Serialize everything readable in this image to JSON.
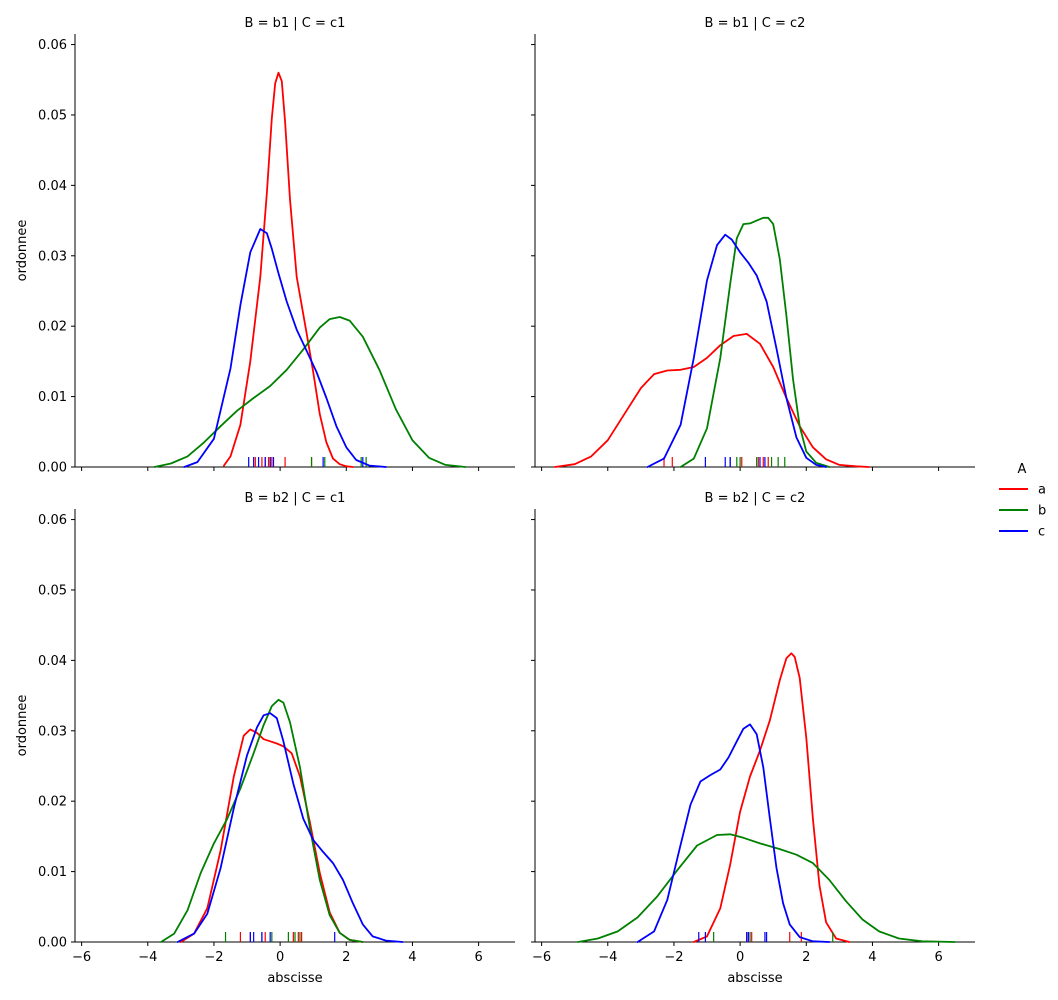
{
  "chart_data": {
    "type": "line",
    "subtype": "kde-facet-grid-with-rug",
    "xlabel": "abscisse",
    "ylabel": "ordonnee",
    "xlim": [
      -6.2,
      7.1
    ],
    "ylim": [
      0,
      0.0615
    ],
    "xticks": [
      -6,
      -4,
      -2,
      0,
      2,
      4,
      6
    ],
    "yticks": [
      0.0,
      0.01,
      0.02,
      0.03,
      0.04,
      0.05,
      0.06
    ],
    "ytick_labels": [
      "0.00",
      "0.01",
      "0.02",
      "0.03",
      "0.04",
      "0.05",
      "0.06"
    ],
    "grid": false,
    "legend": {
      "title": "A",
      "placement": "right",
      "entries": [
        {
          "label": "a",
          "color": "#ff0000"
        },
        {
          "label": "b",
          "color": "#008000"
        },
        {
          "label": "c",
          "color": "#0000ff"
        }
      ]
    },
    "panels": [
      {
        "title": "B = b1 | C = c1",
        "series": [
          {
            "name": "a",
            "color": "#ff0000",
            "x": [
              -1.7,
              -1.5,
              -1.2,
              -0.9,
              -0.6,
              -0.4,
              -0.25,
              -0.15,
              -0.05,
              0.05,
              0.15,
              0.3,
              0.5,
              0.8,
              1.0,
              1.2,
              1.4,
              1.6,
              1.8,
              2.0,
              2.2
            ],
            "y": [
              0.0002,
              0.0015,
              0.006,
              0.015,
              0.027,
              0.039,
              0.0495,
              0.0545,
              0.056,
              0.0548,
              0.049,
              0.038,
              0.027,
              0.019,
              0.0135,
              0.0075,
              0.0035,
              0.0012,
              0.0004,
              0.0001,
              0.0
            ],
            "rug": [
              -0.75,
              -0.55,
              -0.45,
              -0.35,
              -0.25,
              0.15,
              0.95
            ]
          },
          {
            "name": "b",
            "color": "#008000",
            "x": [
              -3.8,
              -3.3,
              -2.8,
              -2.3,
              -1.8,
              -1.3,
              -0.8,
              -0.3,
              0.2,
              0.7,
              1.2,
              1.5,
              1.8,
              2.1,
              2.5,
              3.0,
              3.5,
              4.0,
              4.5,
              5.0,
              5.6
            ],
            "y": [
              0.0,
              0.0005,
              0.0015,
              0.0035,
              0.0058,
              0.008,
              0.0098,
              0.0115,
              0.0138,
              0.0167,
              0.0198,
              0.021,
              0.0213,
              0.0208,
              0.0185,
              0.0138,
              0.0082,
              0.0038,
              0.0013,
              0.0003,
              0.0
            ],
            "rug": [
              -0.3,
              0.95,
              1.35,
              2.45,
              2.6
            ]
          },
          {
            "name": "c",
            "color": "#0000ff",
            "x": [
              -2.9,
              -2.5,
              -2.0,
              -1.5,
              -1.2,
              -0.9,
              -0.6,
              -0.4,
              -0.25,
              -0.05,
              0.2,
              0.5,
              0.8,
              1.1,
              1.4,
              1.7,
              2.0,
              2.3,
              2.7,
              3.2
            ],
            "y": [
              0.0,
              0.0007,
              0.004,
              0.014,
              0.023,
              0.0305,
              0.0338,
              0.0332,
              0.031,
              0.0275,
              0.0235,
              0.0195,
              0.0165,
              0.0135,
              0.0098,
              0.0058,
              0.0028,
              0.001,
              0.0002,
              0.0
            ],
            "rug": [
              -0.95,
              -0.8,
              -0.65,
              -0.45,
              -0.3,
              -0.2,
              1.3,
              2.5
            ]
          }
        ]
      },
      {
        "title": "B = b1 | C = c2",
        "series": [
          {
            "name": "a",
            "color": "#ff0000",
            "x": [
              -5.6,
              -5.0,
              -4.5,
              -4.0,
              -3.5,
              -3.0,
              -2.6,
              -2.2,
              -1.8,
              -1.4,
              -1.0,
              -0.6,
              -0.2,
              0.2,
              0.6,
              1.0,
              1.4,
              1.8,
              2.2,
              2.6,
              3.0,
              3.5,
              3.9
            ],
            "y": [
              0.0,
              0.0004,
              0.0015,
              0.0038,
              0.0075,
              0.0112,
              0.0132,
              0.0137,
              0.0138,
              0.0142,
              0.0155,
              0.0173,
              0.0186,
              0.0189,
              0.0175,
              0.0142,
              0.0098,
              0.0058,
              0.0028,
              0.0011,
              0.0003,
              0.0001,
              0.0
            ],
            "rug": [
              -2.3,
              -2.05,
              0.05,
              0.55,
              0.7,
              0.85
            ]
          },
          {
            "name": "b",
            "color": "#008000",
            "x": [
              -1.8,
              -1.4,
              -1.0,
              -0.6,
              -0.3,
              -0.1,
              0.1,
              0.3,
              0.5,
              0.7,
              0.85,
              1.0,
              1.2,
              1.4,
              1.6,
              1.8,
              2.0,
              2.3,
              2.7
            ],
            "y": [
              0.0,
              0.0012,
              0.0055,
              0.0155,
              0.026,
              0.0325,
              0.0345,
              0.0346,
              0.035,
              0.0354,
              0.0354,
              0.0345,
              0.0295,
              0.0215,
              0.0125,
              0.0058,
              0.0022,
              0.0006,
              0.0
            ],
            "rug": [
              -0.3,
              -0.1,
              0.0,
              0.5,
              0.95,
              1.15,
              1.35
            ]
          },
          {
            "name": "c",
            "color": "#0000ff",
            "x": [
              -2.8,
              -2.3,
              -1.8,
              -1.4,
              -1.0,
              -0.7,
              -0.45,
              -0.25,
              0.0,
              0.25,
              0.5,
              0.8,
              1.1,
              1.4,
              1.7,
              2.0,
              2.3,
              2.6
            ],
            "y": [
              0.0,
              0.0012,
              0.006,
              0.0155,
              0.0265,
              0.0315,
              0.033,
              0.0323,
              0.0305,
              0.029,
              0.0272,
              0.0235,
              0.0168,
              0.0098,
              0.0042,
              0.0013,
              0.0003,
              0.0
            ],
            "rug": [
              -1.05,
              -0.45,
              -0.3,
              0.6,
              0.75
            ]
          }
        ]
      },
      {
        "title": "B = b2 | C = c1",
        "series": [
          {
            "name": "a",
            "color": "#ff0000",
            "x": [
              -3.0,
              -2.6,
              -2.2,
              -1.8,
              -1.4,
              -1.1,
              -0.9,
              -0.7,
              -0.5,
              -0.3,
              -0.1,
              0.1,
              0.35,
              0.6,
              0.9,
              1.2,
              1.5,
              1.8,
              2.1,
              2.5
            ],
            "y": [
              0.0,
              0.0012,
              0.0048,
              0.013,
              0.0235,
              0.0293,
              0.0302,
              0.0297,
              0.0288,
              0.0285,
              0.0282,
              0.0278,
              0.0268,
              0.0235,
              0.017,
              0.0098,
              0.0042,
              0.0013,
              0.0003,
              0.0
            ],
            "rug": [
              -1.2,
              -0.9,
              -0.45,
              0.4,
              0.55,
              0.65
            ]
          },
          {
            "name": "b",
            "color": "#008000",
            "x": [
              -3.6,
              -3.2,
              -2.8,
              -2.4,
              -2.0,
              -1.6,
              -1.2,
              -0.8,
              -0.5,
              -0.25,
              -0.05,
              0.1,
              0.3,
              0.6,
              0.9,
              1.2,
              1.5,
              1.8,
              2.1,
              2.5
            ],
            "y": [
              0.0,
              0.0012,
              0.0045,
              0.0098,
              0.014,
              0.0175,
              0.0218,
              0.0268,
              0.0308,
              0.0335,
              0.0344,
              0.034,
              0.0312,
              0.0248,
              0.0162,
              0.0088,
              0.0038,
              0.0013,
              0.0003,
              0.0
            ],
            "rug": [
              -1.65,
              -0.55,
              -0.25,
              0.25,
              0.45,
              0.6
            ]
          },
          {
            "name": "c",
            "color": "#0000ff",
            "x": [
              -3.1,
              -2.6,
              -2.2,
              -1.8,
              -1.4,
              -1.0,
              -0.7,
              -0.5,
              -0.3,
              -0.1,
              0.1,
              0.4,
              0.7,
              1.0,
              1.3,
              1.6,
              1.9,
              2.2,
              2.5,
              2.8,
              3.2,
              3.7
            ],
            "y": [
              0.0,
              0.0012,
              0.004,
              0.0105,
              0.019,
              0.0265,
              0.0305,
              0.0322,
              0.0325,
              0.0318,
              0.0285,
              0.0225,
              0.0175,
              0.0145,
              0.0128,
              0.0112,
              0.0088,
              0.0055,
              0.0025,
              0.0008,
              0.0002,
              0.0
            ],
            "rug": [
              -0.9,
              -0.8,
              -0.55,
              -0.3,
              1.65
            ]
          }
        ]
      },
      {
        "title": "B = b2 | C = c2",
        "series": [
          {
            "name": "a",
            "color": "#ff0000",
            "x": [
              -1.4,
              -1.0,
              -0.6,
              -0.3,
              0.0,
              0.3,
              0.6,
              0.9,
              1.2,
              1.4,
              1.55,
              1.65,
              1.8,
              2.0,
              2.2,
              2.4,
              2.6,
              2.9,
              3.3
            ],
            "y": [
              0.0,
              0.0008,
              0.0048,
              0.011,
              0.0185,
              0.0235,
              0.0272,
              0.0315,
              0.0372,
              0.0403,
              0.041,
              0.0405,
              0.0375,
              0.029,
              0.0175,
              0.008,
              0.0028,
              0.0005,
              0.0
            ],
            "rug": [
              0.2,
              0.35,
              1.5,
              1.85
            ]
          },
          {
            "name": "b",
            "color": "#008000",
            "x": [
              -4.9,
              -4.3,
              -3.7,
              -3.1,
              -2.5,
              -1.9,
              -1.3,
              -0.7,
              -0.3,
              0.1,
              0.6,
              1.2,
              1.7,
              2.2,
              2.7,
              3.2,
              3.7,
              4.2,
              4.8,
              5.5,
              6.5
            ],
            "y": [
              0.0,
              0.0005,
              0.0015,
              0.0035,
              0.0065,
              0.0102,
              0.0137,
              0.0152,
              0.0153,
              0.0148,
              0.014,
              0.0132,
              0.0124,
              0.0112,
              0.0088,
              0.0058,
              0.0032,
              0.0015,
              0.0005,
              0.0001,
              0.0
            ],
            "rug": [
              -0.8,
              0.3,
              2.8
            ]
          },
          {
            "name": "c",
            "color": "#0000ff",
            "x": [
              -3.1,
              -2.6,
              -2.2,
              -1.8,
              -1.5,
              -1.2,
              -0.9,
              -0.6,
              -0.35,
              -0.1,
              0.1,
              0.3,
              0.5,
              0.7,
              0.9,
              1.1,
              1.3,
              1.5,
              1.8,
              2.2,
              2.7
            ],
            "y": [
              0.0,
              0.0015,
              0.006,
              0.0138,
              0.0195,
              0.0228,
              0.0237,
              0.0245,
              0.0262,
              0.0285,
              0.0303,
              0.0309,
              0.0295,
              0.0248,
              0.0175,
              0.0105,
              0.0055,
              0.0025,
              0.0007,
              0.0001,
              0.0
            ],
            "rug": [
              -1.25,
              -1.05,
              0.2,
              0.25,
              0.75,
              0.8
            ]
          }
        ]
      }
    ]
  }
}
